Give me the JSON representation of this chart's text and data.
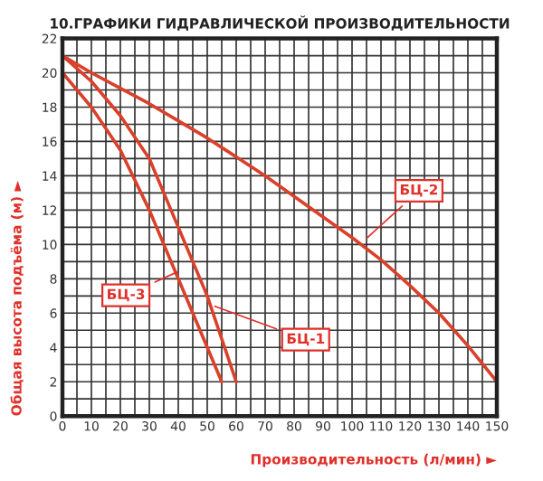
{
  "chart_data": {
    "type": "line",
    "title": "10.ГРАФИКИ ГИДРАВЛИЧЕСКОЙ ПРОИЗВОДИТЕЛЬНОСТИ",
    "xlabel": "Производительность (л/мин) ►",
    "ylabel": "Общая высота подъёма (м) ►",
    "series": [
      {
        "color": "#d9412b",
        "x": [
          0,
          10,
          20,
          30,
          35,
          40,
          45,
          50,
          55,
          60
        ],
        "values": [
          21,
          19.5,
          17.5,
          15,
          13,
          11,
          9,
          7,
          4.5,
          2
        ]
      },
      {
        "color": "#d9412b",
        "x": [
          0,
          10,
          20,
          30,
          40,
          50,
          60,
          70,
          80,
          90,
          100,
          110,
          120,
          130,
          140,
          150
        ],
        "values": [
          21,
          20,
          19.1,
          18.2,
          17.2,
          16.2,
          15.1,
          14,
          12.8,
          11.6,
          10.4,
          9.1,
          7.6,
          6,
          4.1,
          2
        ]
      },
      {
        "color": "#d9412b",
        "x": [
          0,
          10,
          20,
          30,
          35,
          40,
          45,
          50,
          55
        ],
        "values": [
          20,
          18,
          15.5,
          12,
          10,
          8,
          6,
          4,
          2
        ]
      }
    ],
    "annotations": [
      {
        "text": "БЦ-1",
        "x": 51,
        "y": 6.5
      },
      {
        "text": "БЦ-2",
        "x": 104,
        "y": 10.2
      },
      {
        "text": "БЦ-3",
        "x": 41,
        "y": 8.5
      }
    ],
    "xlim": [
      0,
      150
    ],
    "ylim": [
      0,
      22
    ],
    "xticks": [
      0,
      {
        "value": 5,
        "label": null
      },
      10,
      {
        "value": 15,
        "label": null
      },
      20,
      {
        "value": 25,
        "label": null
      },
      30,
      {
        "value": 35,
        "label": null
      },
      40,
      {
        "value": 45,
        "label": null
      },
      50,
      {
        "value": 55,
        "label": null
      },
      60,
      {
        "value": 65,
        "label": null
      },
      70,
      {
        "value": 75,
        "label": null
      },
      80,
      {
        "value": 85,
        "label": null
      },
      90,
      {
        "value": 95,
        "label": null
      },
      100,
      {
        "value": 105,
        "label": null
      },
      110,
      {
        "value": 115,
        "label": null
      },
      120,
      {
        "value": 125,
        "label": null
      },
      130,
      {
        "value": 135,
        "label": null
      },
      140,
      {
        "value": 145,
        "label": null
      },
      150
    ],
    "yticks": [
      0,
      {
        "value": 1,
        "label": null
      },
      2,
      {
        "value": 3,
        "label": null
      },
      4,
      {
        "value": 5,
        "label": null
      },
      6,
      {
        "value": 7,
        "label": null
      },
      8,
      {
        "value": 9,
        "label": null
      },
      10,
      {
        "value": 11,
        "label": null
      },
      12,
      {
        "value": 13,
        "label": null
      },
      14,
      {
        "value": 15,
        "label": null
      },
      16,
      {
        "value": 17,
        "label": null
      },
      18,
      {
        "value": 19,
        "label": null
      },
      20,
      {
        "value": 21,
        "label": null
      },
      22
    ],
    "grid": true,
    "legend": false,
    "marker": "none",
    "line_style": "solid"
  }
}
